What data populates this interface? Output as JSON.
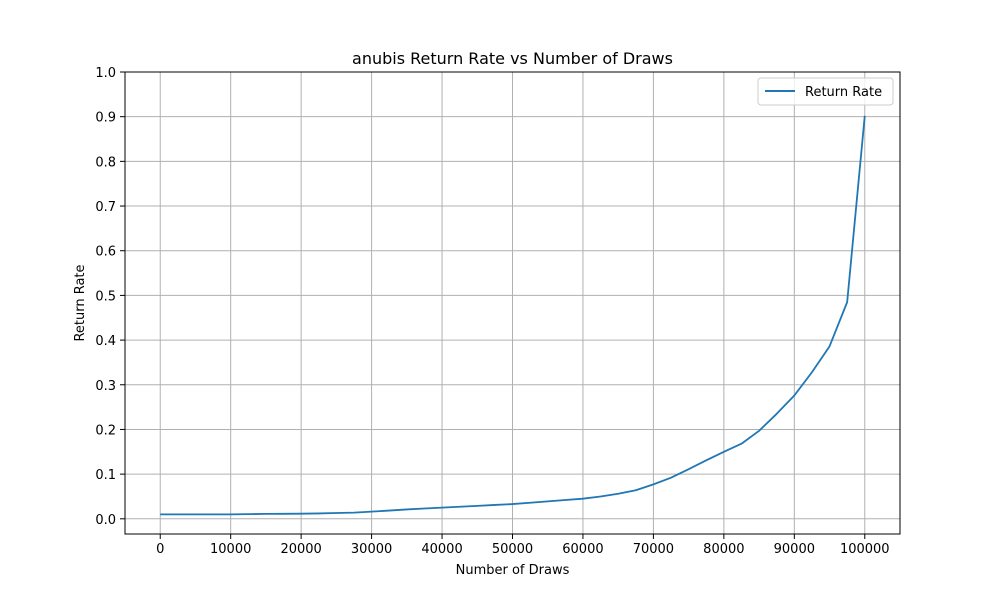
{
  "chart_data": {
    "type": "line",
    "title": "anubis Return Rate vs Number of Draws",
    "xlabel": "Number of Draws",
    "ylabel": "Return Rate",
    "xlim": [
      -5000,
      105000
    ],
    "ylim": [
      -0.034,
      1.0
    ],
    "xticks": [
      0,
      10000,
      20000,
      30000,
      40000,
      50000,
      60000,
      70000,
      80000,
      90000,
      100000
    ],
    "xtick_labels": [
      "0",
      "10000",
      "20000",
      "30000",
      "40000",
      "50000",
      "60000",
      "70000",
      "80000",
      "90000",
      "100000"
    ],
    "yticks": [
      0.0,
      0.1,
      0.2,
      0.3,
      0.4,
      0.5,
      0.6,
      0.7,
      0.8,
      0.9,
      1.0
    ],
    "ytick_labels": [
      "0.0",
      "0.1",
      "0.2",
      "0.3",
      "0.4",
      "0.5",
      "0.6",
      "0.7",
      "0.8",
      "0.9",
      "1.0"
    ],
    "grid": true,
    "legend_position": "top-right",
    "series": [
      {
        "name": "Return Rate",
        "color": "#1f77b4",
        "x": [
          0,
          2500,
          5000,
          7500,
          10000,
          12500,
          15000,
          17500,
          20000,
          22500,
          25000,
          27500,
          30000,
          32500,
          35000,
          37500,
          40000,
          42500,
          45000,
          47500,
          50000,
          52500,
          55000,
          57500,
          60000,
          62500,
          65000,
          67500,
          70000,
          72500,
          75000,
          77500,
          80000,
          82500,
          85000,
          87500,
          90000,
          92500,
          95000,
          97500,
          100000
        ],
        "y": [
          0.01,
          0.01,
          0.01,
          0.01,
          0.01,
          0.0105,
          0.011,
          0.0112,
          0.0115,
          0.012,
          0.013,
          0.0138,
          0.016,
          0.0185,
          0.021,
          0.023,
          0.025,
          0.027,
          0.029,
          0.031,
          0.033,
          0.036,
          0.039,
          0.042,
          0.045,
          0.05,
          0.056,
          0.064,
          0.077,
          0.092,
          0.111,
          0.131,
          0.15,
          0.168,
          0.197,
          0.235,
          0.276,
          0.328,
          0.386,
          0.485,
          0.902
        ]
      }
    ]
  }
}
